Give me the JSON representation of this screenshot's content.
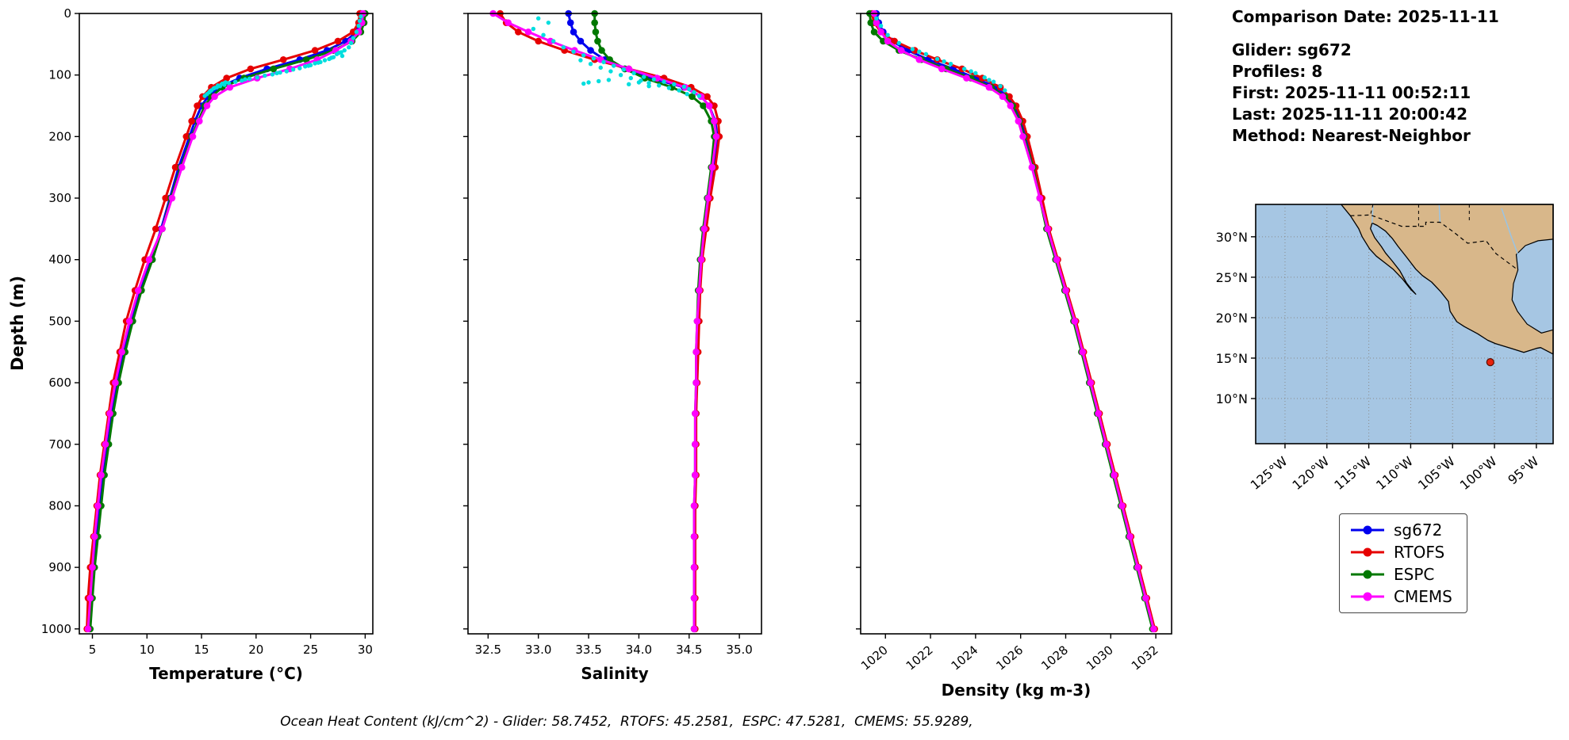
{
  "ylabel": "Depth (m)",
  "info": {
    "comparison_date": "Comparison Date: 2025-11-11",
    "glider": "Glider: sg672",
    "profiles": "Profiles: 8",
    "first": "First: 2025-11-11 00:52:11",
    "last": "Last: 2025-11-11 20:00:42",
    "method": "Method: Nearest-Neighbor"
  },
  "footer": "Ocean Heat Content (kJ/cm^2) - Glider: 58.7452,  RTOFS: 45.2581,  ESPC: 47.5281,  CMEMS: 55.9289,",
  "legend": {
    "entries": [
      {
        "label": "sg672",
        "color": "#0000ee"
      },
      {
        "label": "RTOFS",
        "color": "#e60000"
      },
      {
        "label": "ESPC",
        "color": "#007800"
      },
      {
        "label": "CMEMS",
        "color": "#ff00ff"
      }
    ]
  },
  "chart_data": [
    {
      "type": "line",
      "name": "temperature",
      "xlabel": "Temperature (°C)",
      "ylabel": "Depth (m)",
      "x_range": [
        3.8,
        30.7
      ],
      "x_ticks": [
        5,
        10,
        15,
        20,
        25,
        30
      ],
      "x_tick_labels": [
        "5",
        "10",
        "15",
        "20",
        "25",
        "30"
      ],
      "rotate_x_labels": false,
      "y_range": [
        0,
        1008
      ],
      "y_ticks": [
        0,
        100,
        200,
        300,
        400,
        500,
        600,
        700,
        800,
        900,
        1000
      ],
      "y_tick_labels": [
        "0",
        "100",
        "200",
        "300",
        "400",
        "500",
        "600",
        "700",
        "800",
        "900",
        "1000"
      ],
      "depths": [
        0,
        15,
        30,
        45,
        60,
        75,
        90,
        105,
        120,
        135,
        150,
        175,
        200,
        250,
        300,
        350,
        400,
        450,
        500,
        550,
        600,
        650,
        700,
        750,
        800,
        850,
        900,
        950,
        1000
      ],
      "series": [
        {
          "name": "sg672",
          "color": "#0000ee",
          "values": [
            29.6,
            29.5,
            29.2,
            28.2,
            26.5,
            24.0,
            21.0,
            18.5,
            16.6,
            15.6,
            15.0,
            14.4,
            13.9,
            12.9,
            12.1,
            11.3,
            10.4,
            9.4,
            8.6,
            7.9,
            7.3,
            6.8,
            6.4,
            6.0,
            5.7,
            5.4,
            5.1,
            4.9,
            4.7
          ]
        },
        {
          "name": "RTOFS",
          "color": "#e60000",
          "values": [
            29.5,
            29.4,
            28.9,
            27.5,
            25.4,
            22.5,
            19.5,
            17.3,
            15.9,
            15.1,
            14.6,
            14.1,
            13.6,
            12.6,
            11.7,
            10.8,
            9.8,
            8.9,
            8.1,
            7.5,
            6.9,
            6.5,
            6.1,
            5.7,
            5.4,
            5.1,
            4.8,
            4.6,
            4.5
          ]
        },
        {
          "name": "ESPC",
          "color": "#007800",
          "values": [
            30.0,
            29.9,
            29.6,
            28.8,
            27.1,
            24.6,
            21.6,
            18.9,
            16.9,
            15.9,
            15.3,
            14.7,
            14.1,
            13.1,
            12.2,
            11.4,
            10.5,
            9.5,
            8.7,
            8.0,
            7.4,
            6.9,
            6.5,
            6.1,
            5.8,
            5.5,
            5.2,
            5.0,
            4.8
          ]
        },
        {
          "name": "CMEMS",
          "color": "#ff00ff",
          "values": [
            29.8,
            29.7,
            29.4,
            28.7,
            27.3,
            25.6,
            23.1,
            20.1,
            17.6,
            16.2,
            15.5,
            14.8,
            14.2,
            13.2,
            12.3,
            11.4,
            10.2,
            9.2,
            8.4,
            7.7,
            7.1,
            6.6,
            6.2,
            5.8,
            5.5,
            5.2,
            5.0,
            4.8,
            4.6
          ]
        }
      ],
      "scatter": {
        "name": "glider-raw-points",
        "color": "#00dede",
        "points": [
          [
            29.6,
            5
          ],
          [
            29.5,
            12
          ],
          [
            29.4,
            20
          ],
          [
            29.2,
            30
          ],
          [
            28.9,
            40
          ],
          [
            28.7,
            48
          ],
          [
            28.5,
            55
          ],
          [
            28.1,
            60
          ],
          [
            27.8,
            63
          ],
          [
            27.4,
            66
          ],
          [
            27.9,
            69
          ],
          [
            27.1,
            71
          ],
          [
            26.7,
            74
          ],
          [
            26.3,
            76
          ],
          [
            25.9,
            79
          ],
          [
            25.4,
            81
          ],
          [
            25.0,
            84
          ],
          [
            24.5,
            86
          ],
          [
            24.0,
            89
          ],
          [
            23.4,
            91
          ],
          [
            22.8,
            94
          ],
          [
            22.2,
            96
          ],
          [
            21.5,
            99
          ],
          [
            20.8,
            101
          ],
          [
            20.1,
            104
          ],
          [
            19.4,
            106
          ],
          [
            18.7,
            109
          ],
          [
            18.1,
            111
          ],
          [
            17.5,
            113
          ],
          [
            17.1,
            116
          ],
          [
            16.7,
            118
          ],
          [
            16.4,
            120
          ],
          [
            16.1,
            122
          ],
          [
            15.9,
            125
          ],
          [
            15.7,
            128
          ],
          [
            15.5,
            131
          ],
          [
            15.3,
            134
          ],
          [
            17.2,
            112
          ],
          [
            16.9,
            114
          ],
          [
            16.5,
            117
          ],
          [
            27.6,
            64
          ],
          [
            26.9,
            72
          ],
          [
            25.7,
            80
          ],
          [
            24.8,
            85
          ],
          [
            21.9,
            97
          ],
          [
            19.0,
            107
          ],
          [
            16.2,
            121
          ],
          [
            15.8,
            126
          ]
        ]
      }
    },
    {
      "type": "line",
      "name": "salinity",
      "xlabel": "Salinity",
      "ylabel": "Depth (m)",
      "x_range": [
        32.3,
        35.22
      ],
      "x_ticks": [
        32.5,
        33.0,
        33.5,
        34.0,
        34.5,
        35.0
      ],
      "x_tick_labels": [
        "32.5",
        "33.0",
        "33.5",
        "34.0",
        "34.5",
        "35.0"
      ],
      "rotate_x_labels": false,
      "y_range": [
        0,
        1008
      ],
      "y_ticks": [
        0,
        100,
        200,
        300,
        400,
        500,
        600,
        700,
        800,
        900,
        1000
      ],
      "y_tick_labels": [
        "0",
        "100",
        "200",
        "300",
        "400",
        "500",
        "600",
        "700",
        "800",
        "900",
        "1000"
      ],
      "depths": [
        0,
        15,
        30,
        45,
        60,
        75,
        90,
        105,
        120,
        135,
        150,
        175,
        200,
        250,
        300,
        350,
        400,
        450,
        500,
        550,
        600,
        650,
        700,
        750,
        800,
        850,
        900,
        950,
        1000
      ],
      "series": [
        {
          "name": "sg672",
          "color": "#0000ee",
          "values": [
            33.3,
            33.32,
            33.35,
            33.42,
            33.52,
            33.66,
            33.86,
            34.12,
            34.45,
            34.62,
            34.7,
            34.76,
            34.78,
            34.74,
            34.69,
            34.65,
            34.62,
            34.6,
            34.59,
            34.58,
            34.57,
            34.57,
            34.56,
            34.56,
            34.56,
            34.55,
            34.55,
            34.55,
            34.55
          ]
        },
        {
          "name": "RTOFS",
          "color": "#e60000",
          "values": [
            32.62,
            32.68,
            32.8,
            33.0,
            33.26,
            33.56,
            33.9,
            34.25,
            34.52,
            34.68,
            34.75,
            34.79,
            34.8,
            34.76,
            34.71,
            34.67,
            34.63,
            34.61,
            34.6,
            34.59,
            34.58,
            34.57,
            34.57,
            34.57,
            34.56,
            34.56,
            34.56,
            34.56,
            34.56
          ]
        },
        {
          "name": "ESPC",
          "color": "#007800",
          "values": [
            33.56,
            33.56,
            33.57,
            33.59,
            33.63,
            33.71,
            33.86,
            34.06,
            34.33,
            34.53,
            34.64,
            34.72,
            34.75,
            34.72,
            34.68,
            34.64,
            34.61,
            34.59,
            34.58,
            34.57,
            34.57,
            34.56,
            34.56,
            34.56,
            34.55,
            34.55,
            34.55,
            34.55,
            34.55
          ]
        },
        {
          "name": "CMEMS",
          "color": "#ff00ff",
          "values": [
            32.55,
            32.7,
            32.9,
            33.12,
            33.36,
            33.62,
            33.9,
            34.18,
            34.46,
            34.62,
            34.7,
            34.75,
            34.77,
            34.73,
            34.69,
            34.65,
            34.62,
            34.6,
            34.58,
            34.57,
            34.57,
            34.56,
            34.56,
            34.56,
            34.55,
            34.55,
            34.55,
            34.55,
            34.55
          ]
        }
      ],
      "scatter": {
        "name": "glider-raw-points",
        "color": "#00dede",
        "points": [
          [
            33.0,
            8
          ],
          [
            33.1,
            15
          ],
          [
            32.95,
            25
          ],
          [
            33.05,
            35
          ],
          [
            33.15,
            45
          ],
          [
            33.25,
            55
          ],
          [
            33.35,
            62
          ],
          [
            33.45,
            68
          ],
          [
            33.55,
            73
          ],
          [
            33.42,
            76
          ],
          [
            33.65,
            79
          ],
          [
            33.52,
            82
          ],
          [
            33.75,
            85
          ],
          [
            33.62,
            88
          ],
          [
            33.85,
            91
          ],
          [
            33.72,
            94
          ],
          [
            33.95,
            97
          ],
          [
            33.82,
            100
          ],
          [
            34.05,
            103
          ],
          [
            33.92,
            105
          ],
          [
            34.15,
            107
          ],
          [
            34.02,
            109
          ],
          [
            34.25,
            111
          ],
          [
            34.1,
            113
          ],
          [
            34.35,
            115
          ],
          [
            34.2,
            117
          ],
          [
            34.45,
            119
          ],
          [
            34.3,
            121
          ],
          [
            34.5,
            123
          ],
          [
            34.4,
            125
          ],
          [
            34.55,
            128
          ],
          [
            34.48,
            131
          ],
          [
            34.6,
            134
          ],
          [
            33.6,
            110
          ],
          [
            33.5,
            112
          ],
          [
            33.7,
            108
          ],
          [
            33.45,
            114
          ],
          [
            34.0,
            112
          ],
          [
            33.9,
            115
          ],
          [
            34.1,
            118
          ]
        ]
      }
    },
    {
      "type": "line",
      "name": "density",
      "xlabel": "Density (kg m-3)",
      "ylabel": "Depth (m)",
      "x_range": [
        1018.9,
        1032.7
      ],
      "x_ticks": [
        1020,
        1022,
        1024,
        1026,
        1028,
        1030,
        1032
      ],
      "x_tick_labels": [
        "1020",
        "1022",
        "1024",
        "1026",
        "1028",
        "1030",
        "1032"
      ],
      "rotate_x_labels": true,
      "y_range": [
        0,
        1008
      ],
      "y_ticks": [
        0,
        100,
        200,
        300,
        400,
        500,
        600,
        700,
        800,
        900,
        1000
      ],
      "y_tick_labels": [
        "0",
        "100",
        "200",
        "300",
        "400",
        "500",
        "600",
        "700",
        "800",
        "900",
        "1000"
      ],
      "depths": [
        0,
        15,
        30,
        45,
        60,
        75,
        90,
        105,
        120,
        135,
        150,
        175,
        200,
        250,
        300,
        350,
        400,
        450,
        500,
        550,
        600,
        650,
        700,
        750,
        800,
        850,
        900,
        950,
        1000
      ],
      "series": [
        {
          "name": "sg672",
          "color": "#0000ee",
          "values": [
            1019.6,
            1019.7,
            1019.9,
            1020.3,
            1021.0,
            1021.9,
            1023.0,
            1024.0,
            1024.9,
            1025.4,
            1025.7,
            1026.0,
            1026.2,
            1026.6,
            1026.9,
            1027.2,
            1027.6,
            1028.0,
            1028.4,
            1028.75,
            1029.1,
            1029.45,
            1029.8,
            1030.15,
            1030.5,
            1030.85,
            1031.2,
            1031.55,
            1031.9
          ]
        },
        {
          "name": "RTOFS",
          "color": "#e60000",
          "values": [
            1019.4,
            1019.5,
            1019.8,
            1020.4,
            1021.3,
            1022.3,
            1023.4,
            1024.3,
            1025.1,
            1025.5,
            1025.8,
            1026.1,
            1026.3,
            1026.65,
            1026.95,
            1027.25,
            1027.65,
            1028.05,
            1028.45,
            1028.8,
            1029.15,
            1029.5,
            1029.85,
            1030.2,
            1030.55,
            1030.9,
            1031.25,
            1031.6,
            1031.95
          ]
        },
        {
          "name": "ESPC",
          "color": "#007800",
          "values": [
            1019.3,
            1019.35,
            1019.5,
            1019.9,
            1020.6,
            1021.6,
            1022.7,
            1023.8,
            1024.7,
            1025.3,
            1025.65,
            1025.95,
            1026.15,
            1026.55,
            1026.85,
            1027.15,
            1027.55,
            1027.95,
            1028.35,
            1028.7,
            1029.05,
            1029.4,
            1029.75,
            1030.1,
            1030.45,
            1030.8,
            1031.15,
            1031.5,
            1031.85
          ]
        },
        {
          "name": "CMEMS",
          "color": "#ff00ff",
          "values": [
            1019.5,
            1019.6,
            1019.8,
            1020.1,
            1020.7,
            1021.5,
            1022.5,
            1023.6,
            1024.6,
            1025.2,
            1025.55,
            1025.9,
            1026.1,
            1026.5,
            1026.85,
            1027.2,
            1027.6,
            1028.0,
            1028.4,
            1028.75,
            1029.1,
            1029.45,
            1029.8,
            1030.15,
            1030.5,
            1030.85,
            1031.2,
            1031.55,
            1031.9
          ]
        }
      ],
      "scatter": {
        "name": "glider-raw-points",
        "color": "#00dede",
        "points": [
          [
            1019.6,
            8
          ],
          [
            1019.8,
            20
          ],
          [
            1020.1,
            35
          ],
          [
            1020.6,
            48
          ],
          [
            1021.2,
            58
          ],
          [
            1021.8,
            66
          ],
          [
            1022.3,
            74
          ],
          [
            1022.9,
            82
          ],
          [
            1023.5,
            90
          ],
          [
            1024.0,
            97
          ],
          [
            1024.4,
            104
          ],
          [
            1024.8,
            111
          ],
          [
            1025.1,
            118
          ],
          [
            1025.3,
            125
          ],
          [
            1021.5,
            62
          ],
          [
            1022.6,
            78
          ],
          [
            1023.8,
            94
          ],
          [
            1024.6,
            108
          ]
        ]
      }
    }
  ],
  "map": {
    "lat_tick_values": [
      30,
      25,
      20,
      15,
      10
    ],
    "lat_tick_labels": [
      "30°N",
      "25°N",
      "20°N",
      "15°N",
      "10°N"
    ],
    "lon_tick_values_w": [
      125,
      120,
      115,
      110,
      105,
      100,
      95
    ],
    "lon_tick_labels": [
      "125°W",
      "120°W",
      "115°W",
      "110°W",
      "105°W",
      "100°W",
      "95°W"
    ],
    "marker": {
      "lon_w": 100.5,
      "lat": 14.5,
      "color": "#e8220c",
      "edge": "#5a0f00"
    },
    "ocean_color": "#a6c6e3",
    "land_color": "#d8b78a"
  }
}
